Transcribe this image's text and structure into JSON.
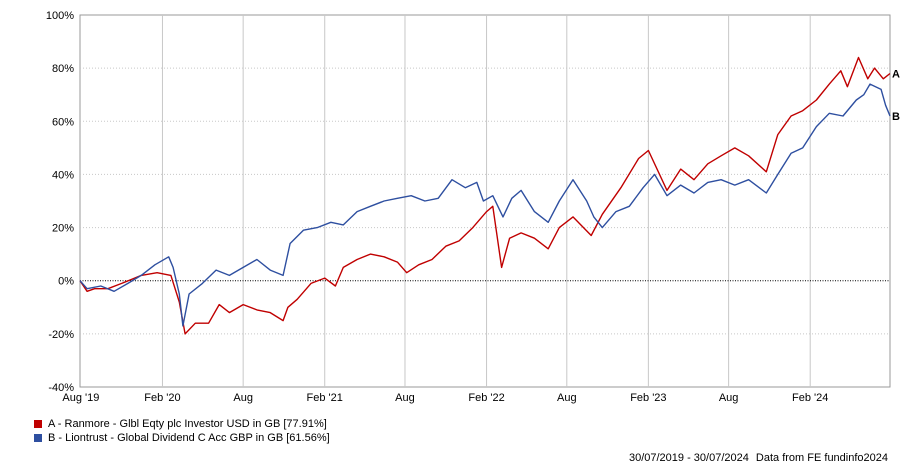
{
  "chart_data": {
    "type": "line",
    "y_ticks": [
      "100%",
      "80%",
      "60%",
      "40%",
      "20%",
      "0%",
      "-20%",
      "-40%"
    ],
    "x_ticks": [
      "Aug '19",
      "Feb '20",
      "Aug",
      "Feb '21",
      "Aug",
      "Feb '22",
      "Aug",
      "Feb '23",
      "Aug",
      "Feb '24"
    ],
    "ylim": [
      -40,
      100
    ],
    "xlim": [
      "2019-07-30",
      "2024-07-30"
    ],
    "grid": true,
    "legend_position": "bottom-left",
    "series": [
      {
        "id": "A",
        "name": "A - Ranmore - Glbl Eqty plc Investor USD in GB [77.91%]",
        "end_label": "A",
        "color": "#c00000",
        "points": [
          [
            "2019-07-30",
            0
          ],
          [
            "2019-08-15",
            -4
          ],
          [
            "2019-09-01",
            -3
          ],
          [
            "2019-10-01",
            -3
          ],
          [
            "2019-11-01",
            -1
          ],
          [
            "2019-12-15",
            2
          ],
          [
            "2020-01-20",
            3
          ],
          [
            "2020-02-20",
            2
          ],
          [
            "2020-03-10",
            -8
          ],
          [
            "2020-03-23",
            -20
          ],
          [
            "2020-04-15",
            -16
          ],
          [
            "2020-05-15",
            -16
          ],
          [
            "2020-06-08",
            -9
          ],
          [
            "2020-07-01",
            -12
          ],
          [
            "2020-08-01",
            -9
          ],
          [
            "2020-09-01",
            -11
          ],
          [
            "2020-10-01",
            -12
          ],
          [
            "2020-10-30",
            -15
          ],
          [
            "2020-11-10",
            -10
          ],
          [
            "2020-12-01",
            -7
          ],
          [
            "2021-01-01",
            -1
          ],
          [
            "2021-02-01",
            1
          ],
          [
            "2021-02-25",
            -2
          ],
          [
            "2021-03-15",
            5
          ],
          [
            "2021-04-15",
            8
          ],
          [
            "2021-05-15",
            10
          ],
          [
            "2021-06-15",
            9
          ],
          [
            "2021-07-15",
            7
          ],
          [
            "2021-08-05",
            3
          ],
          [
            "2021-09-01",
            6
          ],
          [
            "2021-10-01",
            8
          ],
          [
            "2021-11-01",
            13
          ],
          [
            "2021-12-01",
            15
          ],
          [
            "2022-01-01",
            20
          ],
          [
            "2022-02-01",
            26
          ],
          [
            "2022-02-15",
            28
          ],
          [
            "2022-03-07",
            5
          ],
          [
            "2022-03-25",
            16
          ],
          [
            "2022-04-20",
            18
          ],
          [
            "2022-05-20",
            16
          ],
          [
            "2022-06-20",
            12
          ],
          [
            "2022-07-15",
            20
          ],
          [
            "2022-08-15",
            24
          ],
          [
            "2022-09-25",
            17
          ],
          [
            "2022-10-20",
            25
          ],
          [
            "2022-12-01",
            35
          ],
          [
            "2023-01-10",
            46
          ],
          [
            "2023-02-01",
            49
          ],
          [
            "2023-03-15",
            34
          ],
          [
            "2023-04-15",
            42
          ],
          [
            "2023-05-15",
            38
          ],
          [
            "2023-06-15",
            44
          ],
          [
            "2023-07-15",
            47
          ],
          [
            "2023-08-15",
            50
          ],
          [
            "2023-09-15",
            47
          ],
          [
            "2023-10-25",
            41
          ],
          [
            "2023-11-20",
            55
          ],
          [
            "2023-12-20",
            62
          ],
          [
            "2024-01-15",
            64
          ],
          [
            "2024-02-15",
            68
          ],
          [
            "2024-03-15",
            74
          ],
          [
            "2024-04-10",
            79
          ],
          [
            "2024-04-25",
            73
          ],
          [
            "2024-05-20",
            84
          ],
          [
            "2024-06-10",
            76
          ],
          [
            "2024-06-25",
            80
          ],
          [
            "2024-07-15",
            76
          ],
          [
            "2024-07-30",
            78
          ]
        ]
      },
      {
        "id": "B",
        "name": "B - Liontrust - Global Dividend C Acc GBP in GB [61.56%]",
        "end_label": "B",
        "color": "#2e4fa0",
        "points": [
          [
            "2019-07-30",
            0
          ],
          [
            "2019-08-15",
            -3
          ],
          [
            "2019-09-15",
            -2
          ],
          [
            "2019-10-15",
            -4
          ],
          [
            "2019-11-15",
            -1
          ],
          [
            "2019-12-15",
            2
          ],
          [
            "2020-01-15",
            6
          ],
          [
            "2020-02-15",
            9
          ],
          [
            "2020-02-25",
            5
          ],
          [
            "2020-03-10",
            -5
          ],
          [
            "2020-03-18",
            -17
          ],
          [
            "2020-04-01",
            -5
          ],
          [
            "2020-05-01",
            -1
          ],
          [
            "2020-06-01",
            4
          ],
          [
            "2020-07-01",
            2
          ],
          [
            "2020-08-01",
            5
          ],
          [
            "2020-09-01",
            8
          ],
          [
            "2020-10-01",
            4
          ],
          [
            "2020-10-30",
            2
          ],
          [
            "2020-11-15",
            14
          ],
          [
            "2020-12-15",
            19
          ],
          [
            "2021-01-15",
            20
          ],
          [
            "2021-02-15",
            22
          ],
          [
            "2021-03-15",
            21
          ],
          [
            "2021-04-15",
            26
          ],
          [
            "2021-05-15",
            28
          ],
          [
            "2021-06-15",
            30
          ],
          [
            "2021-07-15",
            31
          ],
          [
            "2021-08-15",
            32
          ],
          [
            "2021-09-15",
            30
          ],
          [
            "2021-10-15",
            31
          ],
          [
            "2021-11-15",
            38
          ],
          [
            "2021-12-15",
            35
          ],
          [
            "2022-01-10",
            37
          ],
          [
            "2022-01-25",
            30
          ],
          [
            "2022-02-15",
            32
          ],
          [
            "2022-03-10",
            24
          ],
          [
            "2022-03-30",
            31
          ],
          [
            "2022-04-20",
            34
          ],
          [
            "2022-05-20",
            26
          ],
          [
            "2022-06-20",
            22
          ],
          [
            "2022-07-15",
            30
          ],
          [
            "2022-08-15",
            38
          ],
          [
            "2022-09-15",
            30
          ],
          [
            "2022-10-01",
            24
          ],
          [
            "2022-10-20",
            20
          ],
          [
            "2022-11-20",
            26
          ],
          [
            "2022-12-20",
            28
          ],
          [
            "2023-01-20",
            35
          ],
          [
            "2023-02-15",
            40
          ],
          [
            "2023-03-15",
            32
          ],
          [
            "2023-04-15",
            36
          ],
          [
            "2023-05-15",
            33
          ],
          [
            "2023-06-15",
            37
          ],
          [
            "2023-07-15",
            38
          ],
          [
            "2023-08-15",
            36
          ],
          [
            "2023-09-15",
            38
          ],
          [
            "2023-10-25",
            33
          ],
          [
            "2023-11-20",
            40
          ],
          [
            "2023-12-20",
            48
          ],
          [
            "2024-01-15",
            50
          ],
          [
            "2024-02-15",
            58
          ],
          [
            "2024-03-15",
            63
          ],
          [
            "2024-04-15",
            62
          ],
          [
            "2024-05-15",
            68
          ],
          [
            "2024-06-01",
            70
          ],
          [
            "2024-06-15",
            74
          ],
          [
            "2024-07-10",
            72
          ],
          [
            "2024-07-20",
            66
          ],
          [
            "2024-07-30",
            62
          ]
        ]
      }
    ]
  },
  "footer": {
    "date_range": "30/07/2019 - 30/07/2024",
    "source": "Data from FE fundinfo2024"
  }
}
